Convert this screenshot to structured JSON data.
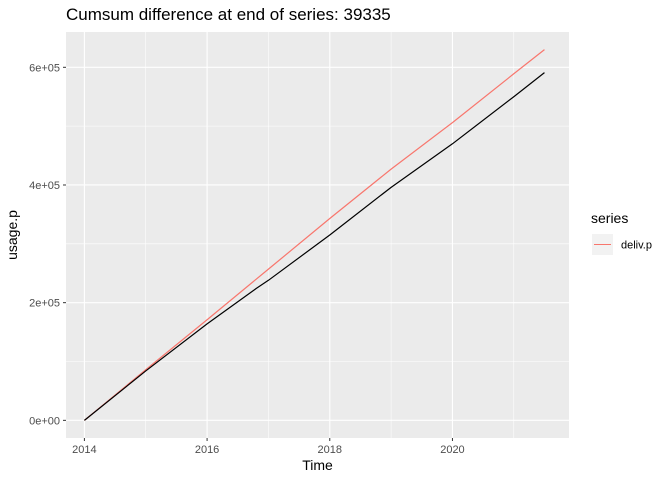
{
  "chart_data": {
    "type": "line",
    "title": "Cumsum difference at end of series:  39335",
    "xlabel": "Time",
    "ylabel": "usage.p",
    "xlim": [
      2013.7,
      2021.9
    ],
    "ylim": [
      -30000,
      660000
    ],
    "x_ticks": [
      2014,
      2016,
      2018,
      2020
    ],
    "x_tick_labels": [
      "2014",
      "2016",
      "2018",
      "2020"
    ],
    "y_ticks": [
      0,
      200000,
      400000,
      600000
    ],
    "y_tick_labels": [
      "0e+00",
      "2e+05",
      "4e+05",
      "6e+05"
    ],
    "grid": true,
    "legend": {
      "title": "series",
      "position": "right"
    },
    "series": [
      {
        "name": "deliv.p",
        "color": "#F8766D",
        "x": [
          2014.0,
          2015.0,
          2016.0,
          2017.0,
          2018.0,
          2019.0,
          2020.0,
          2021.0,
          2021.5
        ],
        "y": [
          0,
          86000,
          171000,
          257000,
          343000,
          427000,
          506000,
          589000,
          630000
        ]
      },
      {
        "name": "",
        "color": "#000000",
        "x": [
          2014.0,
          2015.0,
          2016.0,
          2016.8,
          2017.0,
          2018.0,
          2019.0,
          2020.0,
          2021.0,
          2021.5
        ],
        "y": [
          0,
          84000,
          164000,
          224000,
          238000,
          315000,
          396000,
          470000,
          550000,
          591000
        ]
      }
    ]
  }
}
